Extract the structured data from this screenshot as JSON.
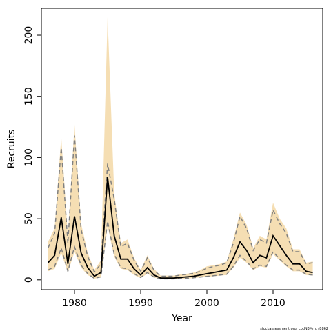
{
  "chart_data": {
    "type": "line",
    "xlabel": "Year",
    "ylabel": "Recruits",
    "xlim": [
      1975,
      2017.5
    ],
    "ylim": [
      -8,
      222
    ],
    "x_ticks": [
      1980,
      1990,
      2000,
      2010
    ],
    "y_ticks": [
      0,
      50,
      100,
      150,
      200
    ],
    "grid": false,
    "colors": {
      "ribbon": "#f5deb3",
      "median_line": "#000000",
      "bound_lines": "#808080"
    },
    "x": [
      1976,
      1977,
      1978,
      1979,
      1980,
      1981,
      1982,
      1983,
      1984,
      1985,
      1986,
      1987,
      1988,
      1989,
      1990,
      1991,
      1992,
      1993,
      1994,
      1995,
      1996,
      1997,
      1998,
      1999,
      2000,
      2001,
      2002,
      2003,
      2004,
      2005,
      2006,
      2007,
      2008,
      2009,
      2010,
      2011,
      2012,
      2013,
      2014,
      2015,
      2016
    ],
    "series": [
      {
        "role": "median",
        "values": [
          14,
          20,
          51,
          13,
          52,
          22,
          10,
          3,
          6,
          84,
          36,
          17,
          17,
          9,
          4,
          10,
          4,
          1.5,
          1.5,
          1.5,
          2,
          2.5,
          3,
          4,
          5,
          6,
          7,
          8,
          18,
          31,
          24,
          14,
          20,
          18,
          36,
          28,
          20,
          13,
          13,
          7,
          6
        ]
      },
      {
        "role": "lower",
        "values": [
          7,
          9,
          22,
          6,
          23,
          10,
          4,
          1,
          2,
          44,
          19,
          9,
          8,
          4,
          1.5,
          5,
          2,
          0.7,
          0.7,
          0.7,
          1,
          1.2,
          1.5,
          2,
          2.5,
          3,
          3.5,
          4,
          10,
          18,
          14,
          8,
          11,
          10,
          21,
          16,
          11,
          7,
          7,
          4,
          3.5
        ]
      },
      {
        "role": "upper",
        "values": [
          31,
          42,
          117,
          35,
          127,
          46,
          22,
          8,
          16,
          215,
          71,
          30,
          33,
          18,
          8,
          20,
          9,
          3.5,
          3.5,
          3.5,
          4.5,
          5,
          6,
          8,
          11,
          12,
          13,
          15,
          33,
          55,
          45,
          26,
          36,
          33,
          63,
          50,
          42,
          25,
          25,
          14,
          15
        ]
      },
      {
        "role": "dashed-lower",
        "values": [
          8,
          11,
          26,
          7,
          27,
          12,
          5,
          1.2,
          2.5,
          48,
          21,
          10,
          9,
          5,
          2,
          6,
          2.3,
          0.8,
          0.8,
          0.8,
          1.1,
          1.4,
          1.7,
          2.3,
          2.8,
          3.4,
          4,
          4.6,
          11,
          20,
          15,
          9,
          12,
          11,
          23,
          17,
          12,
          8,
          8,
          4.5,
          4
        ]
      },
      {
        "role": "dashed-upper",
        "values": [
          26,
          38,
          108,
          30,
          118,
          41,
          19,
          6.5,
          13,
          95,
          66,
          27,
          30,
          16,
          7,
          18,
          8,
          3,
          3,
          3,
          4,
          4.5,
          5.3,
          7,
          9.5,
          11,
          12,
          14,
          30,
          52,
          42,
          24,
          33,
          30,
          57,
          46,
          38,
          23,
          23,
          13,
          14
        ]
      }
    ]
  },
  "credit": "stockassessment.org, codN3Mm, r8862"
}
